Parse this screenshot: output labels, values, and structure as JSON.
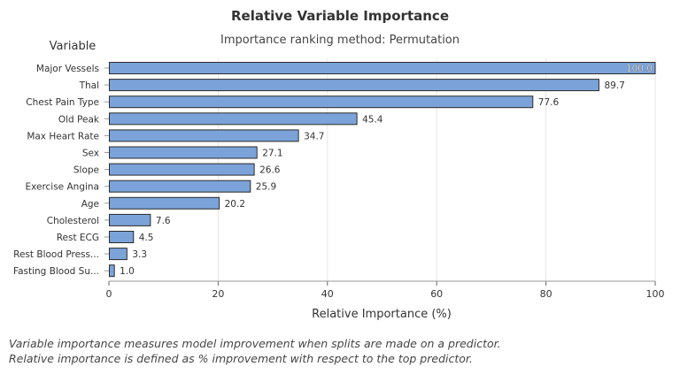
{
  "chart_data": {
    "type": "bar",
    "orientation": "horizontal",
    "title": "Relative Variable Importance",
    "subtitle": "Importance ranking method: Permutation",
    "ylabel": "Variable",
    "xlabel": "Relative Importance (%)",
    "xlim": [
      0,
      100
    ],
    "xticks": [
      "0",
      "20",
      "40",
      "60",
      "80",
      "100"
    ],
    "grid": "vertical",
    "categories": [
      "Major Vessels",
      "Thal",
      "Chest Pain Type",
      "Old Peak",
      "Max Heart Rate",
      "Sex",
      "Slope",
      "Exercise Angina",
      "Age",
      "Cholesterol",
      "Rest ECG",
      "Rest Blood Press...",
      "Fasting Blood Su..."
    ],
    "values": [
      100.0,
      89.7,
      77.6,
      45.4,
      34.7,
      27.1,
      26.6,
      25.9,
      20.2,
      7.6,
      4.5,
      3.3,
      1.0
    ],
    "value_labels": [
      "100.0",
      "89.7",
      "77.6",
      "45.4",
      "34.7",
      "27.1",
      "26.6",
      "25.9",
      "20.2",
      "7.6",
      "4.5",
      "3.3",
      "1.0"
    ],
    "bar_color": "#7BA3D9",
    "bar_edge_color": "#2B2B2B"
  },
  "footnote": {
    "line1": "Variable importance measures model improvement when splits are made on a predictor.",
    "line2": "Relative importance is defined as % improvement with respect to the top predictor."
  }
}
